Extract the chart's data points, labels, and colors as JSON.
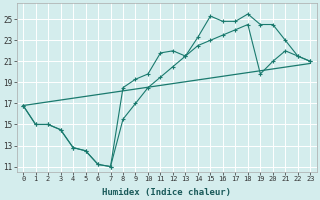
{
  "xlabel": "Humidex (Indice chaleur)",
  "background_color": "#d4eded",
  "grid_color": "#ffffff",
  "line_color": "#1a7a6e",
  "xlim": [
    -0.5,
    23.5
  ],
  "ylim": [
    10.5,
    26.5
  ],
  "xtick_labels": [
    "0",
    "1",
    "2",
    "3",
    "4",
    "5",
    "6",
    "7",
    "8",
    "9",
    "10",
    "11",
    "12",
    "13",
    "14",
    "15",
    "16",
    "17",
    "18",
    "19",
    "20",
    "21",
    "22",
    "23"
  ],
  "ytick_values": [
    11,
    13,
    15,
    17,
    19,
    21,
    23,
    25
  ],
  "series1_x": [
    0,
    1,
    2,
    3,
    4,
    5,
    6,
    7,
    8,
    9,
    10,
    11,
    12,
    13,
    14,
    15,
    16,
    17,
    18,
    19,
    20,
    21,
    22,
    23
  ],
  "series1_y": [
    16.8,
    15.0,
    15.0,
    14.5,
    12.8,
    12.5,
    11.2,
    11.0,
    18.5,
    19.3,
    19.8,
    21.8,
    22.0,
    21.5,
    23.3,
    25.3,
    24.8,
    24.8,
    25.5,
    24.5,
    24.5,
    23.0,
    21.5,
    21.0
  ],
  "series2_x": [
    0,
    1,
    2,
    3,
    4,
    5,
    6,
    7,
    8,
    9,
    10,
    11,
    12,
    13,
    14,
    15,
    16,
    17,
    18,
    19,
    20,
    21,
    22,
    23
  ],
  "series2_y": [
    16.8,
    15.0,
    15.0,
    14.5,
    12.8,
    12.5,
    11.2,
    11.0,
    15.5,
    17.0,
    18.5,
    19.5,
    20.5,
    21.5,
    22.5,
    23.0,
    23.5,
    24.0,
    24.5,
    19.8,
    21.0,
    22.0,
    21.5,
    21.0
  ],
  "series3_x": [
    0,
    23
  ],
  "series3_y": [
    16.8,
    20.8
  ]
}
